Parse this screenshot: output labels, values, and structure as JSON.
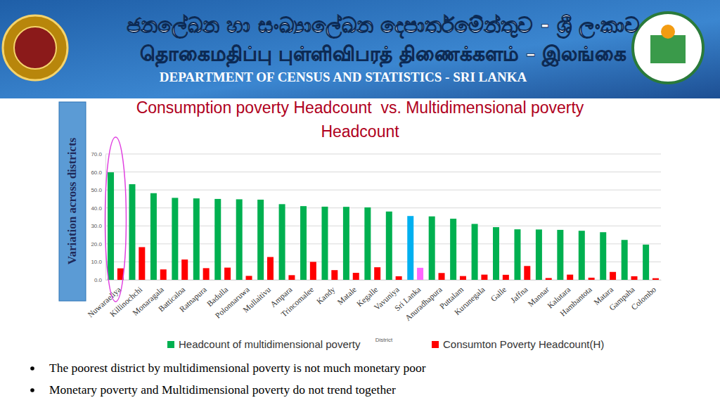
{
  "header": {
    "line1": "ජනලේඛන හා සංඛ්‍යාලේඛන දෙපාර්තමේන්තුව - ශ්‍රී ලංකාව",
    "line2": "தொகைமதிப்பு புள்ளிவிபரத் திணைக்களம் – இலங்கை",
    "line3": "DEPARTMENT OF CENSUS AND STATISTICS - SRI LANKA"
  },
  "chart_data": {
    "type": "bar",
    "title": "Consumption poverty Headcount  vs. Multidimensional poverty Headcount",
    "y_label": "Variation across districts",
    "x_label": "District",
    "categories": [
      "Nuwaraeliya",
      "Killinochchi",
      "Monaragala",
      "Batticaloa",
      "Ratnapura",
      "Badulla",
      "Polonnaruwa",
      "Mullaitivu",
      "Ampara",
      "Trincomalee",
      "Kandy",
      "Matale",
      "Kegalle",
      "Vavuniya",
      "Sri Lanka",
      "Anuradhapura",
      "Puttalam",
      "Kurunegala",
      "Galle",
      "Jaffna",
      "Mannar",
      "Kalutara",
      "Hambantota",
      "Matara",
      "Gampaha",
      "Colombo"
    ],
    "series": [
      {
        "name": "Headcount of multidimensional poverty",
        "color": "#00b050",
        "colors": [
          "#00b050",
          "#00b050",
          "#00b050",
          "#00b050",
          "#00b050",
          "#00b050",
          "#00b050",
          "#00b050",
          "#00b050",
          "#00b050",
          "#00b050",
          "#00b050",
          "#00b050",
          "#00b050",
          "#00b0f0",
          "#00b050",
          "#00b050",
          "#00b050",
          "#00b050",
          "#00b050",
          "#00b050",
          "#00b050",
          "#00b050",
          "#00b050",
          "#00b050",
          "#00b050"
        ],
        "values": [
          59.8,
          53.2,
          48.2,
          45.6,
          45.3,
          45.0,
          44.8,
          44.6,
          42.1,
          41.0,
          40.7,
          40.6,
          40.3,
          38.0,
          35.5,
          35.3,
          34.0,
          31.1,
          29.3,
          28.1,
          28.0,
          27.8,
          27.3,
          26.5,
          22.2,
          19.6
        ]
      },
      {
        "name": "Consumton Poverty Headcount(H)",
        "color": "#ff0000",
        "colors": [
          "#ff0000",
          "#ff0000",
          "#ff0000",
          "#ff0000",
          "#ff0000",
          "#ff0000",
          "#ff0000",
          "#ff0000",
          "#ff0000",
          "#ff0000",
          "#ff0000",
          "#ff0000",
          "#ff0000",
          "#ff0000",
          "#ff66ff",
          "#ff0000",
          "#ff0000",
          "#ff0000",
          "#ff0000",
          "#ff0000",
          "#ff0000",
          "#ff0000",
          "#ff0000",
          "#ff0000",
          "#ff0000",
          "#ff0000"
        ],
        "values": [
          6.4,
          18.2,
          5.8,
          11.3,
          6.5,
          6.8,
          2.2,
          12.7,
          2.6,
          10.0,
          5.4,
          3.9,
          7.0,
          2.0,
          6.7,
          3.8,
          2.1,
          2.9,
          2.8,
          7.7,
          1.0,
          2.9,
          1.2,
          4.4,
          2.0,
          0.9
        ]
      }
    ],
    "ylim": [
      0,
      70
    ],
    "yticks": [
      {
        "value": 0,
        "label": "0.0"
      },
      {
        "value": 10,
        "label": "10.0"
      },
      {
        "value": 20,
        "label": "20.0"
      },
      {
        "value": 30,
        "label": "30.0"
      },
      {
        "value": 40,
        "label": "40.0"
      },
      {
        "value": 50,
        "label": "50.0"
      },
      {
        "value": 60,
        "label": "60.0"
      },
      {
        "value": 70,
        "label": "70.0"
      }
    ],
    "grid": true,
    "legend": "bottom"
  },
  "notes": [
    "The poorest district by multidimensional poverty is not much monetary poor",
    "Monetary poverty and Multidimensional poverty do not trend together"
  ]
}
